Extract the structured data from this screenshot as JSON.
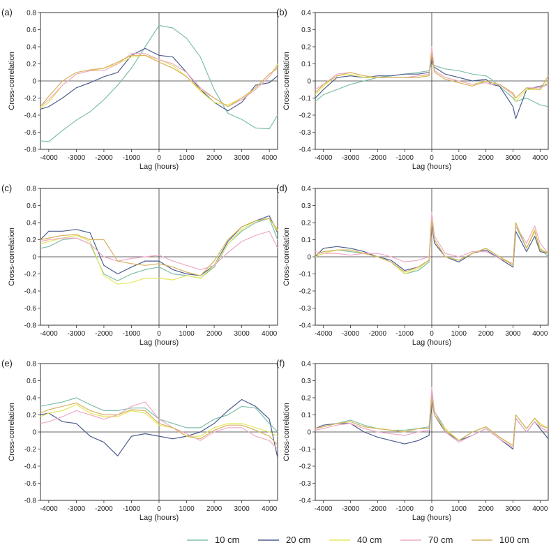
{
  "chart_data": [
    {
      "panel": "(a)",
      "type": "line",
      "xlabel": "Lag (hours)",
      "ylabel": "Cross-correlation",
      "xlim": [
        -4300,
        4300
      ],
      "ylim": [
        -0.8,
        0.8
      ],
      "xticks": [
        -4000,
        -3000,
        -2000,
        -1000,
        0,
        1000,
        2000,
        3000,
        4000
      ],
      "yticks": [
        -0.8,
        -0.6,
        -0.4,
        -0.2,
        0,
        0.2,
        0.4,
        0.6,
        0.8
      ],
      "x": [
        -4300,
        -4000,
        -3500,
        -3000,
        -2500,
        -2000,
        -1500,
        -1000,
        -500,
        0,
        500,
        1000,
        1500,
        2000,
        2500,
        3000,
        3500,
        4000,
        4300
      ],
      "series": [
        {
          "name": "10 cm",
          "values": [
            -0.7,
            -0.71,
            -0.58,
            -0.46,
            -0.36,
            -0.22,
            -0.05,
            0.15,
            0.4,
            0.65,
            0.62,
            0.5,
            0.28,
            -0.1,
            -0.38,
            -0.45,
            -0.55,
            -0.56,
            -0.4
          ]
        },
        {
          "name": "20 cm",
          "values": [
            -0.33,
            -0.3,
            -0.2,
            -0.08,
            -0.02,
            0.05,
            0.1,
            0.3,
            0.38,
            0.3,
            0.28,
            0.1,
            -0.1,
            -0.25,
            -0.35,
            -0.25,
            -0.05,
            -0.02,
            0.06
          ]
        },
        {
          "name": "40 cm",
          "values": [
            -0.32,
            -0.25,
            -0.05,
            0.08,
            0.12,
            0.15,
            0.2,
            0.28,
            0.3,
            0.25,
            0.18,
            0.05,
            -0.12,
            -0.25,
            -0.28,
            -0.2,
            -0.1,
            0.05,
            0.2
          ]
        },
        {
          "name": "70 cm",
          "values": [
            -0.3,
            -0.22,
            -0.05,
            0.08,
            0.12,
            0.12,
            0.2,
            0.32,
            0.32,
            0.25,
            0.2,
            0.1,
            -0.08,
            -0.2,
            -0.3,
            -0.22,
            -0.1,
            0.05,
            0.18
          ]
        },
        {
          "name": "100 cm",
          "values": [
            -0.3,
            -0.18,
            0.0,
            0.1,
            0.13,
            0.15,
            0.22,
            0.3,
            0.3,
            0.22,
            0.15,
            0.05,
            -0.1,
            -0.2,
            -0.3,
            -0.2,
            -0.08,
            0.08,
            0.15
          ]
        }
      ]
    },
    {
      "panel": "(b)",
      "type": "line",
      "xlabel": "Lag (hours)",
      "ylabel": "Cross-correlation",
      "xlim": [
        -4300,
        4300
      ],
      "ylim": [
        -0.4,
        0.4
      ],
      "xticks": [
        -4000,
        -3000,
        -2000,
        -1000,
        0,
        1000,
        2000,
        3000,
        4000
      ],
      "yticks": [
        -0.4,
        -0.3,
        -0.2,
        -0.1,
        0,
        0.1,
        0.2,
        0.3,
        0.4
      ],
      "x": [
        -4300,
        -4000,
        -3500,
        -3000,
        -2500,
        -2000,
        -1500,
        -1000,
        -500,
        -100,
        0,
        100,
        500,
        1000,
        1500,
        2000,
        2200,
        2500,
        3000,
        3100,
        3500,
        4000,
        4300
      ],
      "series": [
        {
          "name": "10 cm",
          "values": [
            -0.12,
            -0.08,
            -0.05,
            -0.02,
            0.0,
            0.02,
            0.03,
            0.04,
            0.05,
            0.06,
            0.1,
            0.09,
            0.07,
            0.06,
            0.04,
            0.03,
            0.01,
            -0.03,
            -0.1,
            -0.12,
            -0.1,
            -0.14,
            -0.15
          ]
        },
        {
          "name": "20 cm",
          "values": [
            -0.1,
            -0.05,
            0.02,
            0.03,
            0.02,
            0.03,
            0.03,
            0.04,
            0.04,
            0.05,
            0.12,
            0.08,
            0.04,
            0.02,
            0.0,
            0.01,
            -0.02,
            -0.03,
            -0.15,
            -0.22,
            -0.05,
            -0.03,
            -0.02
          ]
        },
        {
          "name": "40 cm",
          "values": [
            -0.08,
            -0.03,
            0.03,
            0.04,
            0.02,
            0.02,
            0.02,
            0.02,
            0.03,
            0.03,
            0.18,
            0.06,
            0.02,
            0.0,
            -0.02,
            0.0,
            -0.01,
            -0.02,
            -0.08,
            -0.12,
            -0.05,
            -0.05,
            0.0
          ]
        },
        {
          "name": "70 cm",
          "values": [
            -0.05,
            -0.02,
            0.04,
            0.05,
            0.03,
            0.02,
            0.02,
            0.02,
            0.03,
            0.04,
            0.2,
            0.06,
            0.02,
            0.0,
            -0.02,
            -0.01,
            -0.02,
            -0.02,
            -0.08,
            -0.1,
            -0.04,
            -0.04,
            -0.02
          ]
        },
        {
          "name": "100 cm",
          "values": [
            -0.07,
            -0.02,
            0.03,
            0.05,
            0.03,
            0.02,
            0.02,
            0.02,
            0.02,
            0.03,
            0.16,
            0.05,
            0.01,
            -0.01,
            -0.03,
            0.0,
            -0.01,
            -0.02,
            -0.07,
            -0.1,
            -0.04,
            -0.05,
            0.03
          ]
        }
      ]
    },
    {
      "panel": "(c)",
      "type": "line",
      "xlabel": "Lag (hours)",
      "ylabel": "Cross-correlation",
      "xlim": [
        -4300,
        4300
      ],
      "ylim": [
        -0.8,
        0.8
      ],
      "xticks": [
        -4000,
        -3000,
        -2000,
        -1000,
        0,
        1000,
        2000,
        3000,
        4000
      ],
      "yticks": [
        -0.8,
        -0.6,
        -0.4,
        -0.2,
        0,
        0.2,
        0.4,
        0.6,
        0.8
      ],
      "x": [
        -4300,
        -4000,
        -3500,
        -3000,
        -2500,
        -2000,
        -1500,
        -1000,
        -500,
        0,
        500,
        1000,
        1500,
        2000,
        2500,
        3000,
        3500,
        4000,
        4300
      ],
      "series": [
        {
          "name": "10 cm",
          "values": [
            0.1,
            0.12,
            0.2,
            0.22,
            0.15,
            -0.2,
            -0.28,
            -0.2,
            -0.15,
            -0.12,
            -0.2,
            -0.22,
            -0.25,
            -0.12,
            0.15,
            0.3,
            0.4,
            0.45,
            0.2
          ]
        },
        {
          "name": "20 cm",
          "values": [
            0.2,
            0.3,
            0.3,
            0.32,
            0.28,
            -0.1,
            -0.2,
            -0.12,
            -0.05,
            -0.05,
            -0.15,
            -0.2,
            -0.22,
            -0.1,
            0.18,
            0.35,
            0.42,
            0.48,
            0.28
          ]
        },
        {
          "name": "40 cm",
          "values": [
            0.15,
            0.18,
            0.22,
            0.25,
            0.18,
            -0.22,
            -0.32,
            -0.3,
            -0.25,
            -0.25,
            -0.27,
            -0.22,
            -0.25,
            -0.1,
            0.15,
            0.32,
            0.42,
            0.45,
            0.3
          ]
        },
        {
          "name": "70 cm",
          "values": [
            0.18,
            0.2,
            0.22,
            0.22,
            0.15,
            0.0,
            -0.05,
            -0.02,
            0.0,
            0.02,
            -0.05,
            -0.1,
            -0.15,
            -0.1,
            0.05,
            0.18,
            0.25,
            0.3,
            0.1
          ]
        },
        {
          "name": "100 cm",
          "values": [
            0.2,
            0.22,
            0.25,
            0.26,
            0.2,
            0.2,
            -0.05,
            -0.08,
            -0.1,
            -0.08,
            -0.12,
            -0.18,
            -0.22,
            -0.05,
            0.2,
            0.35,
            0.42,
            0.45,
            0.32
          ]
        }
      ]
    },
    {
      "panel": "(d)",
      "type": "line",
      "xlabel": "Lag (hours)",
      "ylabel": "Cross-correlation",
      "xlim": [
        -4300,
        4300
      ],
      "ylim": [
        -0.4,
        0.4
      ],
      "xticks": [
        -4000,
        -3000,
        -2000,
        -1000,
        0,
        1000,
        2000,
        3000,
        4000
      ],
      "yticks": [
        -0.4,
        -0.3,
        -0.2,
        -0.1,
        0,
        0.1,
        0.2,
        0.3,
        0.4
      ],
      "x": [
        -4300,
        -4000,
        -3500,
        -3000,
        -2500,
        -2000,
        -1500,
        -1000,
        -500,
        -100,
        0,
        100,
        500,
        1000,
        1500,
        2000,
        2500,
        3000,
        3100,
        3500,
        3800,
        4000,
        4300
      ],
      "series": [
        {
          "name": "10 cm",
          "values": [
            0.0,
            0.02,
            0.04,
            0.03,
            0.02,
            0.0,
            -0.03,
            -0.1,
            -0.08,
            -0.03,
            0.22,
            0.1,
            0.0,
            -0.02,
            0.02,
            0.05,
            0.0,
            -0.05,
            0.18,
            0.05,
            0.15,
            0.05,
            0.0
          ]
        },
        {
          "name": "20 cm",
          "values": [
            0.0,
            0.05,
            0.06,
            0.05,
            0.03,
            0.0,
            -0.02,
            -0.08,
            -0.06,
            -0.02,
            0.2,
            0.08,
            0.0,
            -0.03,
            0.02,
            0.04,
            -0.01,
            -0.06,
            0.15,
            0.03,
            0.12,
            0.03,
            0.02
          ]
        },
        {
          "name": "40 cm",
          "values": [
            0.0,
            0.02,
            0.04,
            0.04,
            0.02,
            0.0,
            -0.03,
            -0.1,
            -0.07,
            -0.02,
            0.22,
            0.1,
            0.0,
            -0.02,
            0.02,
            0.05,
            0.0,
            -0.04,
            0.2,
            0.05,
            0.16,
            0.05,
            0.02
          ]
        },
        {
          "name": "70 cm",
          "values": [
            0.03,
            0.02,
            0.02,
            0.01,
            0.02,
            0.02,
            0.0,
            -0.03,
            -0.02,
            0.0,
            0.26,
            0.12,
            0.02,
            0.0,
            0.03,
            0.03,
            -0.01,
            -0.04,
            0.18,
            0.08,
            0.18,
            0.08,
            0.02
          ]
        },
        {
          "name": "100 cm",
          "values": [
            0.01,
            0.03,
            0.04,
            0.04,
            0.02,
            0.0,
            -0.03,
            -0.09,
            -0.06,
            -0.02,
            0.21,
            0.1,
            0.0,
            -0.02,
            0.02,
            0.05,
            0.0,
            -0.05,
            0.2,
            0.05,
            0.15,
            0.04,
            0.02
          ]
        }
      ]
    },
    {
      "panel": "(e)",
      "type": "line",
      "xlabel": "Lag (hours)",
      "ylabel": "Cross-correlation",
      "xlim": [
        -4300,
        4300
      ],
      "ylim": [
        -0.8,
        0.8
      ],
      "xticks": [
        -4000,
        -3000,
        -2000,
        -1000,
        0,
        1000,
        2000,
        3000,
        4000
      ],
      "yticks": [
        -0.8,
        -0.6,
        -0.4,
        -0.2,
        0,
        0.2,
        0.4,
        0.6,
        0.8
      ],
      "x": [
        -4300,
        -4000,
        -3500,
        -3000,
        -2500,
        -2000,
        -1500,
        -1000,
        -500,
        0,
        500,
        1000,
        1500,
        2000,
        2500,
        3000,
        3500,
        4000,
        4300
      ],
      "series": [
        {
          "name": "10 cm",
          "values": [
            0.3,
            0.32,
            0.35,
            0.4,
            0.32,
            0.25,
            0.25,
            0.28,
            0.28,
            0.15,
            0.1,
            0.05,
            0.05,
            0.15,
            0.2,
            0.3,
            0.28,
            0.1,
            0.0
          ]
        },
        {
          "name": "20 cm",
          "values": [
            0.2,
            0.22,
            0.12,
            0.1,
            -0.05,
            -0.12,
            -0.28,
            -0.05,
            -0.02,
            -0.05,
            -0.08,
            -0.05,
            0.0,
            0.1,
            0.25,
            0.38,
            0.3,
            0.15,
            -0.3
          ]
        },
        {
          "name": "40 cm",
          "values": [
            0.18,
            0.22,
            0.25,
            0.32,
            0.22,
            0.18,
            0.18,
            0.25,
            0.22,
            0.08,
            0.05,
            -0.05,
            -0.05,
            0.05,
            0.1,
            0.1,
            0.05,
            0.0,
            -0.05
          ]
        },
        {
          "name": "70 cm",
          "values": [
            0.1,
            0.12,
            0.18,
            0.25,
            0.2,
            0.15,
            0.2,
            0.3,
            0.35,
            0.15,
            0.05,
            -0.02,
            -0.1,
            0.0,
            0.05,
            0.05,
            -0.05,
            -0.1,
            -0.2
          ]
        },
        {
          "name": "100 cm",
          "values": [
            0.22,
            0.26,
            0.3,
            0.34,
            0.25,
            0.2,
            0.2,
            0.26,
            0.25,
            0.1,
            0.05,
            -0.05,
            -0.08,
            0.02,
            0.08,
            0.08,
            0.02,
            -0.05,
            -0.15
          ]
        }
      ]
    },
    {
      "panel": "(f)",
      "type": "line",
      "xlabel": "Lag (hours)",
      "ylabel": "Cross-correlation",
      "xlim": [
        -4300,
        4300
      ],
      "ylim": [
        -0.4,
        0.4
      ],
      "xticks": [
        -4000,
        -3000,
        -2000,
        -1000,
        0,
        1000,
        2000,
        3000,
        4000
      ],
      "yticks": [
        -0.4,
        -0.3,
        -0.2,
        -0.1,
        0,
        0.1,
        0.2,
        0.3,
        0.4
      ],
      "x": [
        -4300,
        -4000,
        -3500,
        -3000,
        -2500,
        -2000,
        -1500,
        -1000,
        -500,
        -100,
        0,
        100,
        500,
        1000,
        1500,
        2000,
        2500,
        3000,
        3100,
        3500,
        3800,
        4000,
        4300
      ],
      "series": [
        {
          "name": "10 cm",
          "values": [
            0.02,
            0.03,
            0.05,
            0.07,
            0.04,
            0.02,
            0.01,
            0.01,
            0.02,
            0.03,
            0.22,
            0.12,
            0.02,
            -0.05,
            0.0,
            0.03,
            -0.03,
            -0.08,
            0.1,
            0.02,
            0.08,
            0.05,
            0.02
          ]
        },
        {
          "name": "20 cm",
          "values": [
            0.02,
            0.04,
            0.05,
            0.05,
            0.0,
            -0.03,
            -0.05,
            -0.07,
            -0.05,
            -0.02,
            0.18,
            0.1,
            0.0,
            -0.05,
            -0.02,
            0.02,
            -0.04,
            -0.1,
            0.08,
            0.0,
            0.06,
            0.02,
            -0.04
          ]
        },
        {
          "name": "40 cm",
          "values": [
            0.02,
            0.03,
            0.05,
            0.06,
            0.03,
            0.02,
            0.01,
            0.0,
            0.02,
            0.02,
            0.2,
            0.1,
            0.02,
            -0.05,
            0.0,
            0.03,
            -0.03,
            -0.08,
            0.1,
            0.02,
            0.08,
            0.05,
            0.02
          ]
        },
        {
          "name": "70 cm",
          "values": [
            0.01,
            0.02,
            0.04,
            0.05,
            0.02,
            0.0,
            -0.01,
            -0.02,
            0.0,
            0.01,
            0.26,
            0.12,
            0.0,
            -0.06,
            -0.02,
            0.02,
            -0.04,
            -0.09,
            0.08,
            0.0,
            0.06,
            0.03,
            0.0
          ]
        },
        {
          "name": "100 cm",
          "values": [
            0.02,
            0.03,
            0.05,
            0.06,
            0.03,
            0.02,
            0.01,
            0.0,
            0.02,
            0.02,
            0.2,
            0.1,
            0.01,
            -0.05,
            0.0,
            0.03,
            -0.03,
            -0.08,
            0.1,
            0.02,
            0.08,
            0.04,
            0.02
          ]
        }
      ]
    }
  ],
  "legend": {
    "items": [
      {
        "label": "10 cm",
        "color": "#7fbfa8"
      },
      {
        "label": "20 cm",
        "color": "#4a5d8c"
      },
      {
        "label": "40 cm",
        "color": "#e3e85a"
      },
      {
        "label": "70 cm",
        "color": "#efaac8"
      },
      {
        "label": "100 cm",
        "color": "#d6b25e"
      }
    ]
  },
  "colors": {
    "10 cm": "#7fbfa8",
    "20 cm": "#4a5d8c",
    "40 cm": "#e3e85a",
    "70 cm": "#efaac8",
    "100 cm": "#d6b25e"
  }
}
